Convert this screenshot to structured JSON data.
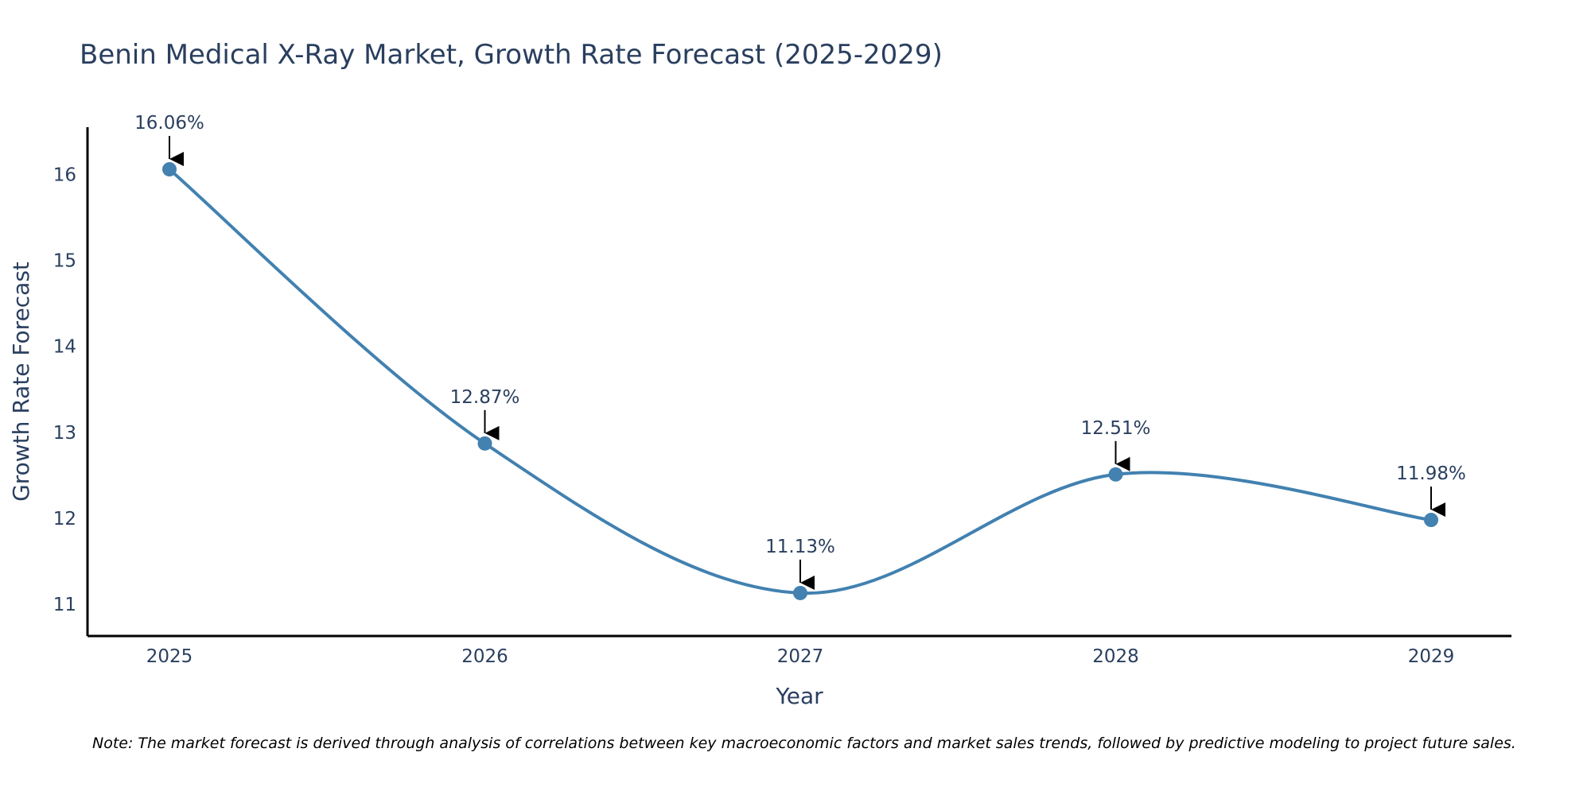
{
  "chart_data": {
    "type": "line",
    "title": "Benin Medical X-Ray Market, Growth Rate Forecast (2025-2029)",
    "xlabel": "Year",
    "ylabel": "Growth Rate Forecast",
    "categories": [
      "2025",
      "2026",
      "2027",
      "2028",
      "2029"
    ],
    "values": [
      16.06,
      12.87,
      11.13,
      12.51,
      11.98
    ],
    "data_labels": [
      "16.06%",
      "12.87%",
      "11.13%",
      "12.51%",
      "11.98%"
    ],
    "y_ticks": [
      11,
      12,
      13,
      14,
      15,
      16
    ],
    "y_tick_labels": [
      "11",
      "12",
      "13",
      "14",
      "15",
      "16"
    ],
    "ylim": [
      10.63,
      16.55
    ],
    "grid": false,
    "legend": "none",
    "line_shape": "spline",
    "note": "Note: The market forecast is derived through analysis of correlations between key macroeconomic factors and market sales trends, followed by predictive modeling to project future sales.",
    "colors": {
      "line": "#4281b0",
      "marker": "#4281b0",
      "axis": "#000000",
      "text": "#2a3f5f",
      "arrow": "#000000"
    }
  }
}
